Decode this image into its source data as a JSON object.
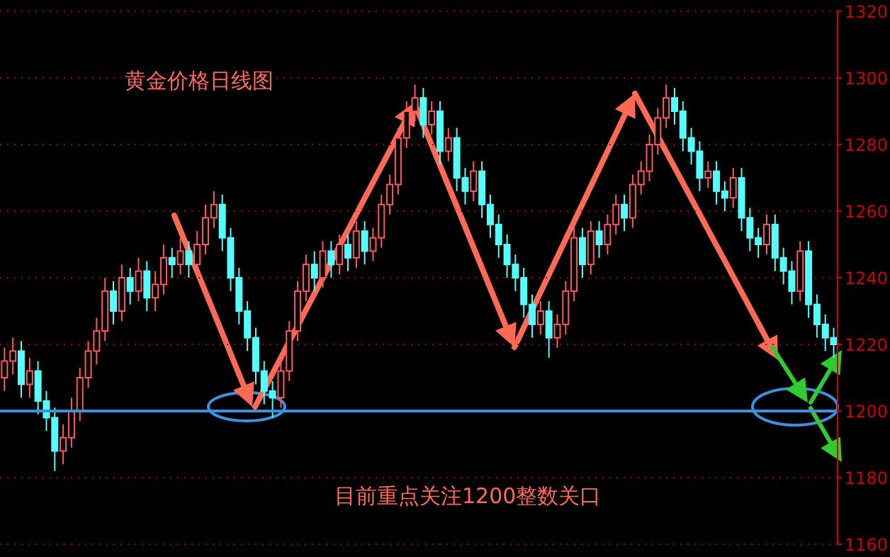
{
  "chart_data": {
    "type": "candlestick",
    "annotations": [
      "黄金价格日线图",
      "目前重点关注1200整数关口"
    ],
    "ylim": [
      1160,
      1320
    ],
    "yticks": [
      1160,
      1180,
      1200,
      1220,
      1240,
      1260,
      1280,
      1300,
      1320
    ],
    "grid": "y",
    "ref_lines": [
      {
        "axis": "y",
        "value": 1200,
        "color": "#3d8fe0"
      }
    ],
    "ohlc": [
      [
        1210,
        1219,
        1206,
        1215
      ],
      [
        1215,
        1222,
        1211,
        1218
      ],
      [
        1218,
        1221,
        1204,
        1208
      ],
      [
        1208,
        1216,
        1204,
        1212
      ],
      [
        1212,
        1215,
        1199,
        1203
      ],
      [
        1203,
        1206,
        1194,
        1198
      ],
      [
        1198,
        1201,
        1182,
        1188
      ],
      [
        1188,
        1196,
        1184,
        1192
      ],
      [
        1192,
        1204,
        1189,
        1200
      ],
      [
        1200,
        1213,
        1197,
        1210
      ],
      [
        1210,
        1221,
        1207,
        1218
      ],
      [
        1218,
        1228,
        1214,
        1224
      ],
      [
        1224,
        1240,
        1221,
        1236
      ],
      [
        1236,
        1239,
        1226,
        1230
      ],
      [
        1230,
        1244,
        1227,
        1240
      ],
      [
        1240,
        1243,
        1232,
        1236
      ],
      [
        1236,
        1246,
        1233,
        1242
      ],
      [
        1242,
        1245,
        1230,
        1234
      ],
      [
        1234,
        1242,
        1230,
        1238
      ],
      [
        1238,
        1250,
        1235,
        1246
      ],
      [
        1246,
        1249,
        1240,
        1244
      ],
      [
        1244,
        1252,
        1241,
        1248
      ],
      [
        1248,
        1251,
        1240,
        1244
      ],
      [
        1244,
        1254,
        1241,
        1250
      ],
      [
        1250,
        1262,
        1247,
        1258
      ],
      [
        1258,
        1266,
        1255,
        1262
      ],
      [
        1262,
        1265,
        1248,
        1252
      ],
      [
        1252,
        1255,
        1236,
        1240
      ],
      [
        1240,
        1243,
        1226,
        1230
      ],
      [
        1230,
        1233,
        1218,
        1222
      ],
      [
        1222,
        1225,
        1208,
        1212
      ],
      [
        1212,
        1215,
        1202,
        1206
      ],
      [
        1206,
        1209,
        1198,
        1204
      ],
      [
        1204,
        1215,
        1201,
        1212
      ],
      [
        1212,
        1227,
        1209,
        1224
      ],
      [
        1224,
        1239,
        1221,
        1236
      ],
      [
        1236,
        1247,
        1233,
        1244
      ],
      [
        1244,
        1248,
        1236,
        1240
      ],
      [
        1240,
        1251,
        1237,
        1248
      ],
      [
        1248,
        1251,
        1240,
        1244
      ],
      [
        1244,
        1253,
        1241,
        1250
      ],
      [
        1250,
        1253,
        1242,
        1246
      ],
      [
        1246,
        1257,
        1243,
        1254
      ],
      [
        1254,
        1257,
        1244,
        1248
      ],
      [
        1248,
        1255,
        1245,
        1252
      ],
      [
        1252,
        1265,
        1249,
        1262
      ],
      [
        1262,
        1271,
        1259,
        1268
      ],
      [
        1268,
        1285,
        1265,
        1282
      ],
      [
        1282,
        1293,
        1279,
        1290
      ],
      [
        1290,
        1298,
        1287,
        1294
      ],
      [
        1294,
        1297,
        1282,
        1286
      ],
      [
        1286,
        1293,
        1283,
        1290
      ],
      [
        1290,
        1293,
        1274,
        1278
      ],
      [
        1278,
        1285,
        1275,
        1282
      ],
      [
        1282,
        1285,
        1266,
        1270
      ],
      [
        1270,
        1273,
        1262,
        1266
      ],
      [
        1266,
        1275,
        1263,
        1272
      ],
      [
        1272,
        1275,
        1258,
        1262
      ],
      [
        1262,
        1265,
        1252,
        1256
      ],
      [
        1256,
        1259,
        1246,
        1250
      ],
      [
        1250,
        1253,
        1240,
        1244
      ],
      [
        1244,
        1247,
        1236,
        1240
      ],
      [
        1240,
        1243,
        1228,
        1232
      ],
      [
        1232,
        1235,
        1222,
        1226
      ],
      [
        1226,
        1233,
        1223,
        1230
      ],
      [
        1230,
        1233,
        1216,
        1222
      ],
      [
        1222,
        1229,
        1219,
        1226
      ],
      [
        1226,
        1239,
        1223,
        1236
      ],
      [
        1236,
        1255,
        1233,
        1252
      ],
      [
        1252,
        1255,
        1240,
        1244
      ],
      [
        1244,
        1257,
        1241,
        1254
      ],
      [
        1254,
        1257,
        1246,
        1250
      ],
      [
        1250,
        1259,
        1247,
        1256
      ],
      [
        1256,
        1265,
        1253,
        1262
      ],
      [
        1262,
        1265,
        1254,
        1258
      ],
      [
        1258,
        1271,
        1255,
        1268
      ],
      [
        1268,
        1275,
        1265,
        1272
      ],
      [
        1272,
        1283,
        1269,
        1280
      ],
      [
        1280,
        1291,
        1277,
        1288
      ],
      [
        1288,
        1298,
        1285,
        1294
      ],
      [
        1294,
        1297,
        1286,
        1290
      ],
      [
        1290,
        1293,
        1278,
        1282
      ],
      [
        1282,
        1285,
        1274,
        1278
      ],
      [
        1278,
        1281,
        1266,
        1270
      ],
      [
        1270,
        1275,
        1267,
        1272
      ],
      [
        1272,
        1275,
        1262,
        1266
      ],
      [
        1266,
        1269,
        1260,
        1264
      ],
      [
        1264,
        1273,
        1261,
        1270
      ],
      [
        1270,
        1273,
        1254,
        1258
      ],
      [
        1258,
        1261,
        1248,
        1252
      ],
      [
        1252,
        1255,
        1246,
        1250
      ],
      [
        1250,
        1259,
        1247,
        1256
      ],
      [
        1256,
        1259,
        1242,
        1246
      ],
      [
        1246,
        1249,
        1238,
        1242
      ],
      [
        1242,
        1245,
        1232,
        1236
      ],
      [
        1236,
        1251,
        1233,
        1248
      ],
      [
        1248,
        1251,
        1228,
        1232
      ],
      [
        1232,
        1235,
        1222,
        1226
      ],
      [
        1226,
        1229,
        1218,
        1222
      ],
      [
        1222,
        1225,
        1216,
        1220
      ]
    ],
    "colors": [
      "#ff5a5a",
      "#ff5a5a",
      "#54fcfc",
      "#ff5a5a",
      "#54fcfc",
      "#54fcfc",
      "#54fcfc",
      "#ff5a5a",
      "#ff5a5a",
      "#ff5a5a",
      "#ff5a5a",
      "#ff5a5a",
      "#ff5a5a",
      "#54fcfc",
      "#ff5a5a",
      "#54fcfc",
      "#ff5a5a",
      "#54fcfc",
      "#ff5a5a",
      "#ff5a5a",
      "#54fcfc",
      "#ff5a5a",
      "#54fcfc",
      "#ff5a5a",
      "#ff5a5a",
      "#ff5a5a",
      "#54fcfc",
      "#54fcfc",
      "#54fcfc",
      "#54fcfc",
      "#54fcfc",
      "#54fcfc",
      "#54fcfc",
      "#ff5a5a",
      "#ff5a5a",
      "#ff5a5a",
      "#ff5a5a",
      "#54fcfc",
      "#ff5a5a",
      "#54fcfc",
      "#ff5a5a",
      "#54fcfc",
      "#ff5a5a",
      "#54fcfc",
      "#ff5a5a",
      "#ff5a5a",
      "#ff5a5a",
      "#ff5a5a",
      "#ff5a5a",
      "#ff5a5a",
      "#54fcfc",
      "#ff5a5a",
      "#54fcfc",
      "#ff5a5a",
      "#54fcfc",
      "#54fcfc",
      "#ff5a5a",
      "#54fcfc",
      "#54fcfc",
      "#54fcfc",
      "#54fcfc",
      "#54fcfc",
      "#54fcfc",
      "#54fcfc",
      "#ff5a5a",
      "#54fcfc",
      "#ff5a5a",
      "#ff5a5a",
      "#ff5a5a",
      "#54fcfc",
      "#ff5a5a",
      "#54fcfc",
      "#ff5a5a",
      "#ff5a5a",
      "#54fcfc",
      "#ff5a5a",
      "#ff5a5a",
      "#ff5a5a",
      "#ff5a5a",
      "#ff5a5a",
      "#54fcfc",
      "#54fcfc",
      "#54fcfc",
      "#54fcfc",
      "#ff5a5a",
      "#54fcfc",
      "#54fcfc",
      "#ff5a5a",
      "#54fcfc",
      "#54fcfc",
      "#54fcfc",
      "#ff5a5a",
      "#54fcfc",
      "#54fcfc",
      "#54fcfc",
      "#ff5a5a",
      "#54fcfc",
      "#54fcfc",
      "#54fcfc",
      "#54fcfc"
    ]
  }
}
